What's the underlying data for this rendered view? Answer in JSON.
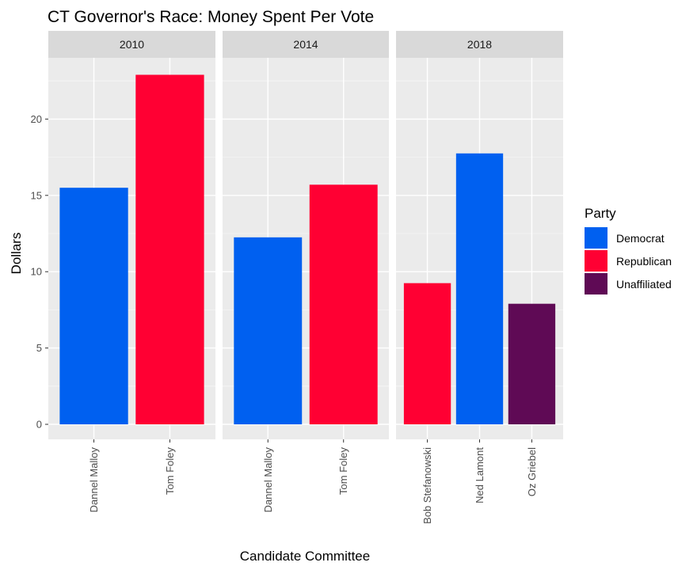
{
  "chart_data": {
    "type": "bar",
    "title": "CT Governor's Race: Money Spent Per Vote",
    "xlabel": "Candidate Committee",
    "ylabel": "Dollars",
    "ylim": [
      -1.0,
      24.2
    ],
    "yticks": [
      0,
      5,
      10,
      15,
      20
    ],
    "grid": true,
    "legend": {
      "title": "Party",
      "placement": "right",
      "entries": [
        {
          "name": "Democrat",
          "color": "#0060F0"
        },
        {
          "name": "Republican",
          "color": "#FF0033"
        },
        {
          "name": "Unaffiliated",
          "color": "#5F0A55"
        }
      ]
    },
    "facets": [
      {
        "label": "2010",
        "bars": [
          {
            "category": "Dannel Malloy",
            "value": 15.5,
            "party": "Democrat"
          },
          {
            "category": "Tom Foley",
            "value": 22.9,
            "party": "Republican"
          }
        ]
      },
      {
        "label": "2014",
        "bars": [
          {
            "category": "Dannel Malloy",
            "value": 12.25,
            "party": "Democrat"
          },
          {
            "category": "Tom Foley",
            "value": 15.7,
            "party": "Republican"
          }
        ]
      },
      {
        "label": "2018",
        "bars": [
          {
            "category": "Bob Stefanowski",
            "value": 9.25,
            "party": "Republican"
          },
          {
            "category": "Ned Lamont",
            "value": 17.75,
            "party": "Democrat"
          },
          {
            "category": "Oz Griebel",
            "value": 7.9,
            "party": "Unaffiliated"
          }
        ]
      }
    ]
  }
}
